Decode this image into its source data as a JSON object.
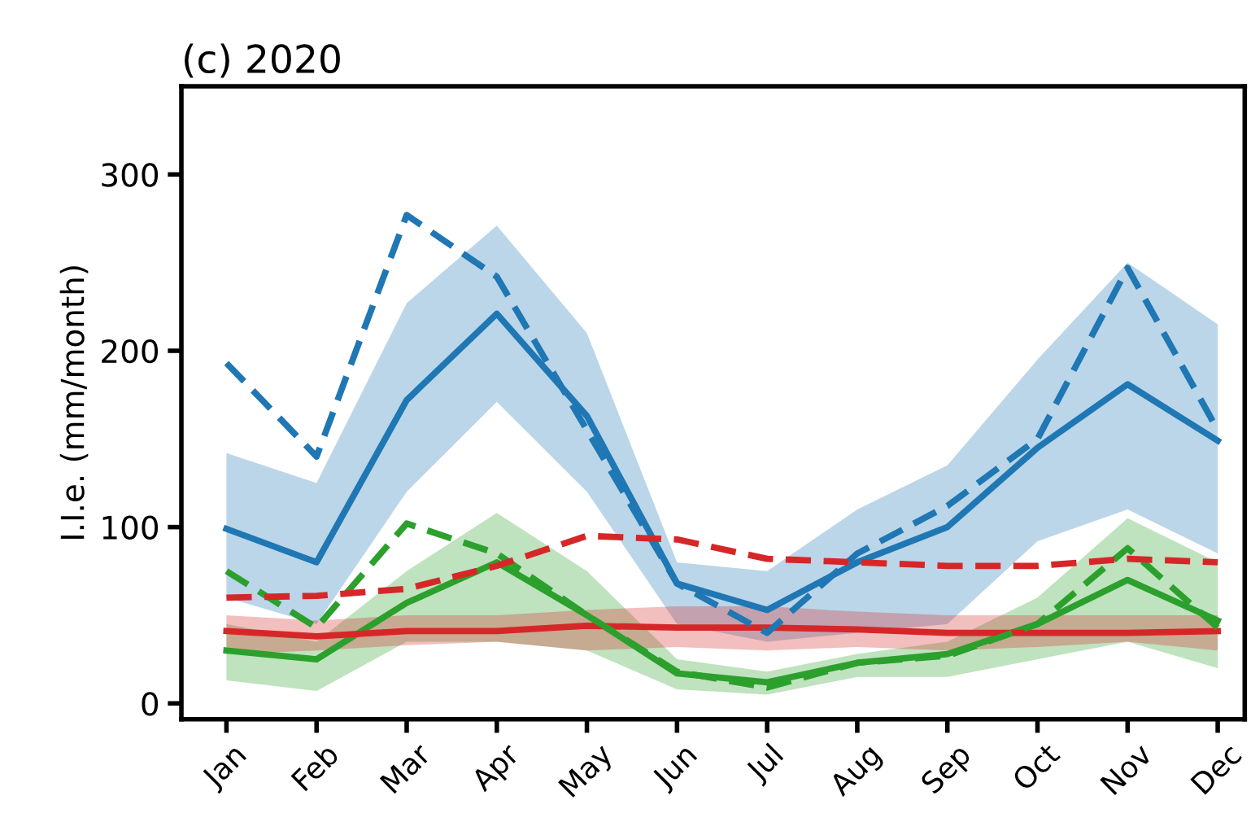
{
  "chart_data": {
    "type": "line",
    "title": "(c) 2020",
    "ylabel": "I.I.e. (mm/month)",
    "categories": [
      "Jan",
      "Feb",
      "Mar",
      "Apr",
      "May",
      "Jun",
      "Jul",
      "Aug",
      "Sep",
      "Oct",
      "Nov",
      "Dec"
    ],
    "ylim": [
      -9,
      350
    ],
    "yticks": [
      0,
      100,
      200,
      300
    ],
    "grid": false,
    "legend": false,
    "marker": "none",
    "series": [
      {
        "color": "#1f77b4",
        "line_style": "solid",
        "values": [
          99,
          80,
          172,
          221,
          163,
          68,
          53,
          80,
          100,
          145,
          181,
          149
        ],
        "lower": [
          60,
          45,
          120,
          171,
          120,
          45,
          35,
          40,
          45,
          92,
          110,
          85
        ],
        "upper": [
          142,
          125,
          227,
          271,
          210,
          80,
          75,
          110,
          135,
          195,
          250,
          215
        ]
      },
      {
        "color": "#2ca02c",
        "line_style": "solid",
        "values": [
          30,
          25,
          57,
          80,
          50,
          17,
          12,
          23,
          28,
          45,
          70,
          47
        ],
        "lower": [
          13,
          7,
          35,
          35,
          30,
          8,
          5,
          15,
          15,
          25,
          35,
          20
        ],
        "upper": [
          45,
          35,
          75,
          108,
          75,
          25,
          18,
          28,
          35,
          60,
          105,
          80
        ]
      },
      {
        "color": "#d62728",
        "line_style": "solid",
        "values": [
          41,
          38,
          41,
          41,
          44,
          43,
          43,
          42,
          40,
          40,
          40,
          41
        ],
        "lower": [
          28,
          30,
          33,
          35,
          30,
          32,
          30,
          32,
          30,
          32,
          35,
          30
        ],
        "upper": [
          50,
          47,
          50,
          50,
          53,
          55,
          55,
          52,
          50,
          50,
          50,
          50
        ]
      },
      {
        "color": "#1f77b4",
        "line_style": "dashed",
        "values": [
          193,
          140,
          277,
          242,
          155,
          68,
          40,
          85,
          112,
          150,
          247,
          155
        ]
      },
      {
        "color": "#2ca02c",
        "line_style": "dashed",
        "values": [
          75,
          43,
          102,
          85,
          50,
          18,
          9,
          23,
          27,
          45,
          88,
          43
        ]
      },
      {
        "color": "#d62728",
        "line_style": "dashed",
        "values": [
          60,
          61,
          65,
          78,
          95,
          93,
          82,
          80,
          78,
          78,
          82,
          80
        ]
      }
    ]
  }
}
